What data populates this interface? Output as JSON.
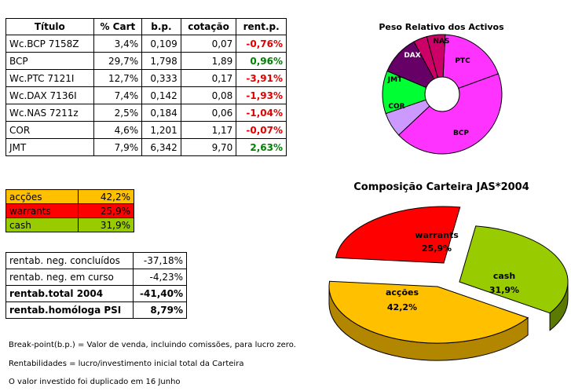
{
  "holdings": {
    "headers": [
      "Título",
      "% Cart",
      "b.p.",
      "cotação",
      "rent.p."
    ],
    "rows": [
      {
        "titulo": "Wc.BCP 7158Z",
        "cart": "3,4%",
        "bp": "0,109",
        "cot": "0,07",
        "rent": "-0,76%",
        "sign": "neg"
      },
      {
        "titulo": "BCP",
        "cart": "29,7%",
        "bp": "1,798",
        "cot": "1,89",
        "rent": "0,96%",
        "sign": "pos"
      },
      {
        "titulo": "Wc.PTC 7121I",
        "cart": "12,7%",
        "bp": "0,333",
        "cot": "0,17",
        "rent": "-3,91%",
        "sign": "neg"
      },
      {
        "titulo": "Wc.DAX 7136I",
        "cart": "7,4%",
        "bp": "0,142",
        "cot": "0,08",
        "rent": "-1,93%",
        "sign": "neg"
      },
      {
        "titulo": "Wc.NAS 7211z",
        "cart": "2,5%",
        "bp": "0,184",
        "cot": "0,06",
        "rent": "-1,04%",
        "sign": "neg"
      },
      {
        "titulo": "COR",
        "cart": "4,6%",
        "bp": "1,201",
        "cot": "1,17",
        "rent": "-0,07%",
        "sign": "neg"
      },
      {
        "titulo": "JMT",
        "cart": "7,9%",
        "bp": "6,342",
        "cot": "9,70",
        "rent": "2,63%",
        "sign": "pos"
      }
    ]
  },
  "allocation": [
    {
      "label": "acções",
      "value": "42,2%",
      "color": "#ffc000"
    },
    {
      "label": "warrants",
      "value": "25,9%",
      "color": "#ff0000"
    },
    {
      "label": "cash",
      "value": "31,9%",
      "color": "#99cc00"
    }
  ],
  "performance": [
    {
      "label": "rentab. neg. concluídos",
      "value": "-37,18%",
      "bold": false
    },
    {
      "label": "rentab. neg. em curso",
      "value": "-4,23%",
      "bold": false
    },
    {
      "label": "rentab.total 2004",
      "value": "-41,40%",
      "bold": true
    },
    {
      "label": "rentab.homóloga PSI",
      "value": "8,79%",
      "bold": true
    }
  ],
  "notes": [
    "Break-point(b.p.) = Valor de venda, incluindo comissões, para lucro zero.",
    "Rentabilidades = lucro/investimento inicial total da Carteira",
    "O valor investido foi duplicado em 16 Junho"
  ],
  "chart_data": [
    {
      "type": "pie",
      "title": "Peso Relativo dos Activos",
      "slices": [
        {
          "label": "PTC",
          "value": 18.8,
          "color": "#ff33ff"
        },
        {
          "label": "BCP",
          "value": 43.9,
          "color": "#ff33ff"
        },
        {
          "label": "COR",
          "value": 6.8,
          "color": "#cc99ff"
        },
        {
          "label": "JMT",
          "value": 11.7,
          "color": "#00ff33"
        },
        {
          "label": "DAX",
          "value": 10.9,
          "color": "#660066"
        },
        {
          "label": "NAS",
          "value": 3.7,
          "color": "#cc0066"
        },
        {
          "label": "",
          "value": 5.0,
          "color": "#cc0066"
        }
      ],
      "legend": "none"
    },
    {
      "type": "pie",
      "title": "Composição Carteira JAS*2004",
      "slices": [
        {
          "label": "warrants",
          "value": 25.9,
          "display": "25,9%",
          "color": "#ff0000"
        },
        {
          "label": "cash",
          "value": 31.9,
          "display": "31,9%",
          "color": "#99cc00"
        },
        {
          "label": "acções",
          "value": 42.2,
          "display": "42,2%",
          "color": "#ffc000"
        }
      ],
      "legend": "none"
    }
  ]
}
